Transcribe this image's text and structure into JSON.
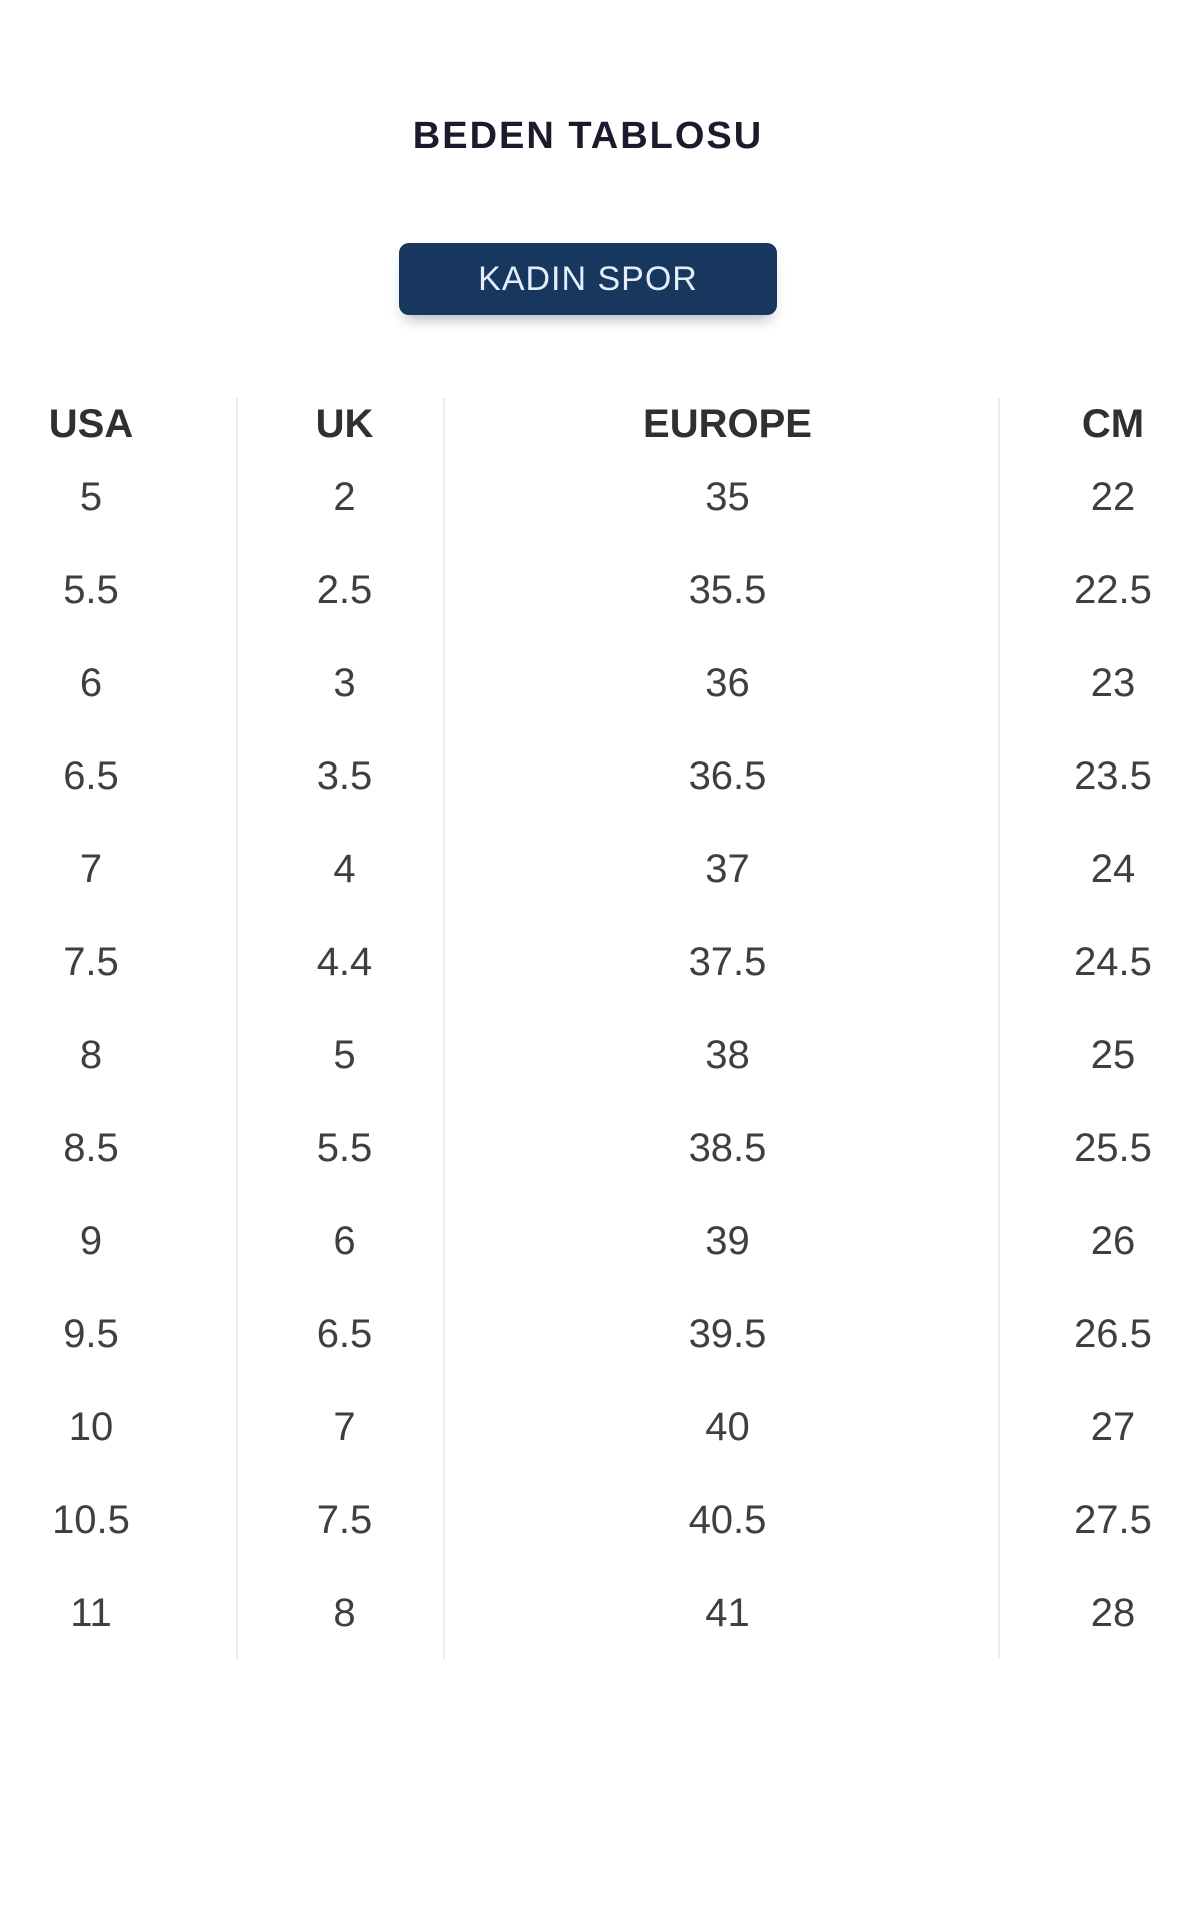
{
  "title": "BEDEN TABLOSU",
  "category_button": {
    "label": "KADIN SPOR",
    "background_color": "#17375e",
    "text_color": "#e4eefa"
  },
  "size_table": {
    "columns": [
      "USA",
      "UK",
      "EUROPE",
      "CM"
    ],
    "rows": [
      [
        "5",
        "2",
        "35",
        "22"
      ],
      [
        "5.5",
        "2.5",
        "35.5",
        "22.5"
      ],
      [
        "6",
        "3",
        "36",
        "23"
      ],
      [
        "6.5",
        "3.5",
        "36.5",
        "23.5"
      ],
      [
        "7",
        "4",
        "37",
        "24"
      ],
      [
        "7.5",
        "4.4",
        "37.5",
        "24.5"
      ],
      [
        "8",
        "5",
        "38",
        "25"
      ],
      [
        "8.5",
        "5.5",
        "38.5",
        "25.5"
      ],
      [
        "9",
        "6",
        "39",
        "26"
      ],
      [
        "9.5",
        "6.5",
        "39.5",
        "26.5"
      ],
      [
        "10",
        "7",
        "40",
        "27"
      ],
      [
        "10.5",
        "7.5",
        "40.5",
        "27.5"
      ],
      [
        "11",
        "8",
        "41",
        "28"
      ]
    ]
  },
  "colors": {
    "background": "#ffffff",
    "title_text": "#1b1b2e",
    "table_header_text": "#303030",
    "table_value_text": "#3f3f3f",
    "column_divider": "#ececec",
    "button_background": "#17375e",
    "button_text": "#e4eefa"
  }
}
